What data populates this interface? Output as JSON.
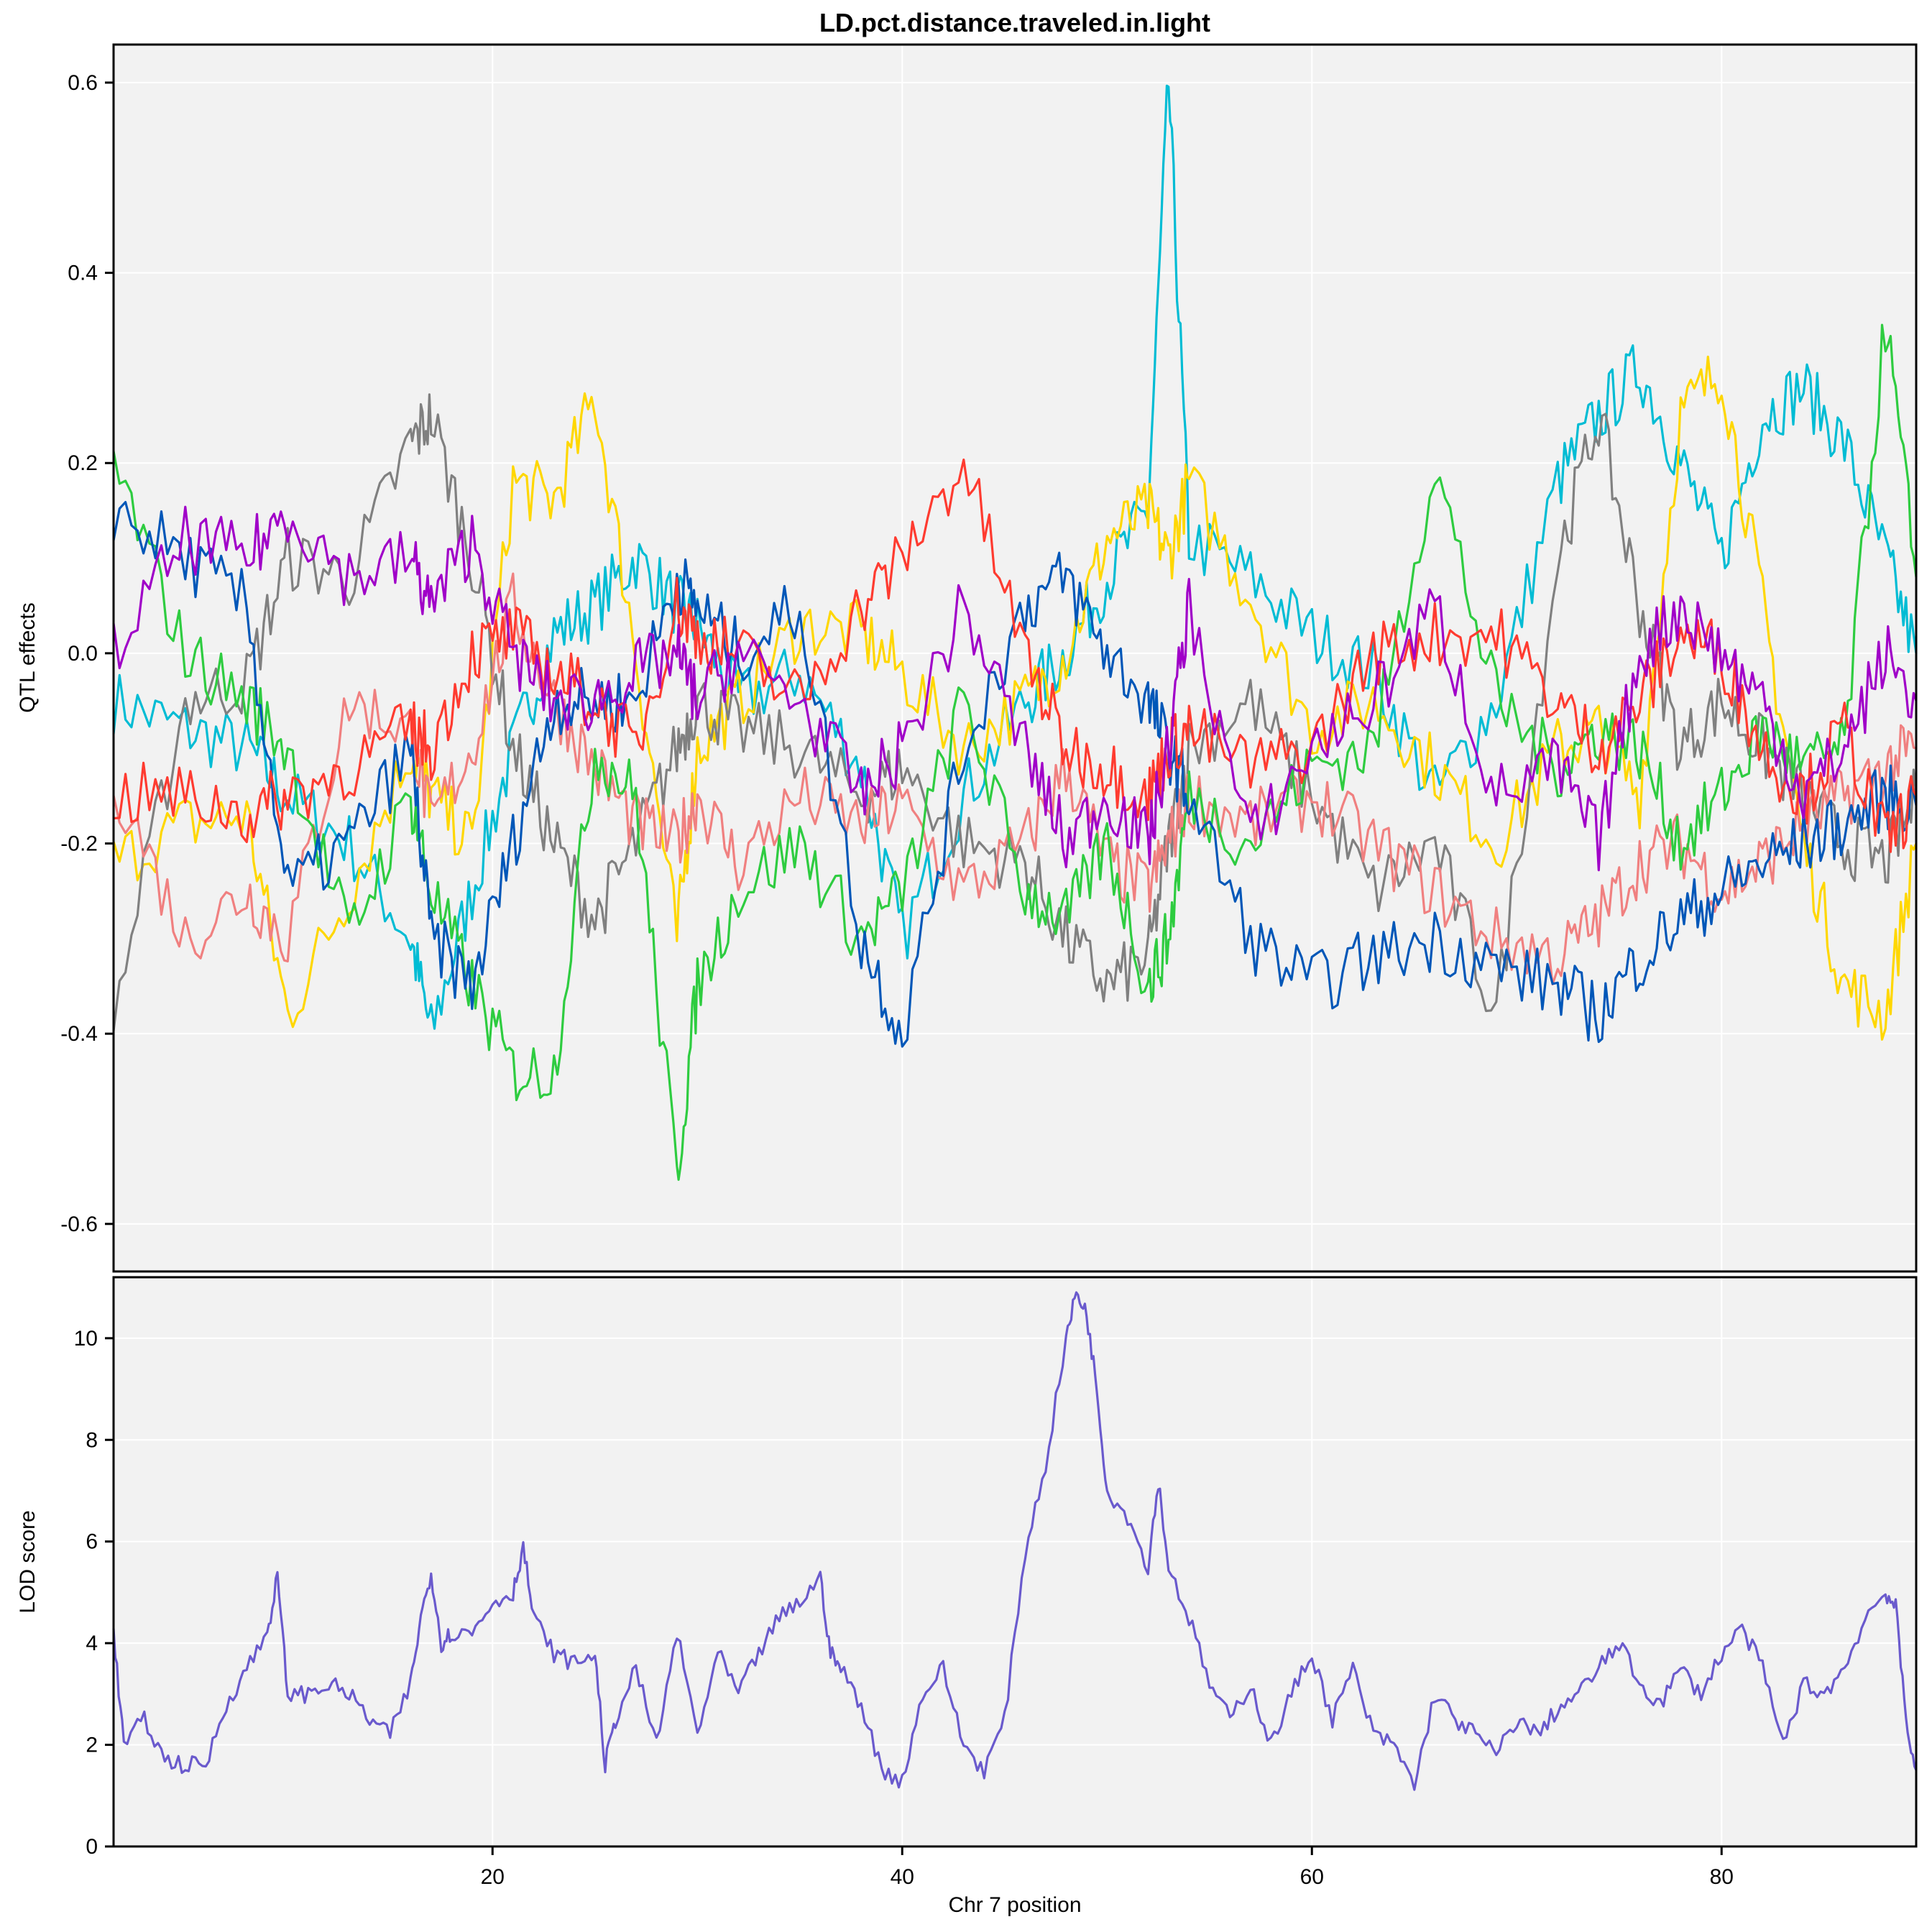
{
  "chart_data": [
    {
      "type": "line",
      "title": "LD.pct.distance.traveled.in.light",
      "ylabel": "QTL effects",
      "xlabel": "",
      "xlim": [
        1.5,
        89.5
      ],
      "ylim": [
        -0.65,
        0.64
      ],
      "grid": true,
      "x_ticks": [
        20,
        40,
        60,
        80
      ],
      "y_ticks": [
        -0.6,
        -0.4,
        -0.2,
        0.0,
        0.2,
        0.4,
        0.6
      ],
      "y_tick_labels": [
        "-0.6",
        "-0.4",
        "-0.2",
        "0.0",
        "0.2",
        "0.4",
        "0.6"
      ],
      "x": [
        1.5,
        5,
        8,
        10,
        13,
        16,
        17,
        19,
        21,
        23,
        25,
        27,
        29,
        30,
        32,
        35,
        38,
        40,
        43,
        46,
        48,
        50,
        52,
        53,
        54,
        57,
        60,
        63,
        66,
        69,
        72,
        74,
        76,
        78,
        80,
        82,
        84,
        86,
        88,
        89.5
      ],
      "series": [
        {
          "color": "#00bcd4",
          "values": [
            -0.05,
            -0.08,
            -0.1,
            -0.15,
            -0.2,
            -0.3,
            -0.4,
            -0.25,
            -0.1,
            0.02,
            0.05,
            0.1,
            0.05,
            0.03,
            -0.05,
            -0.02,
            -0.12,
            -0.3,
            -0.15,
            -0.05,
            0.0,
            0.08,
            0.15,
            0.6,
            0.12,
            0.08,
            0.02,
            -0.02,
            -0.15,
            -0.05,
            0.18,
            0.25,
            0.3,
            0.2,
            0.1,
            0.25,
            0.28,
            0.22,
            0.1,
            0.0
          ]
        },
        {
          "color": "#ffd700",
          "values": [
            -0.22,
            -0.18,
            -0.17,
            -0.38,
            -0.25,
            -0.1,
            -0.15,
            -0.2,
            0.18,
            0.16,
            0.27,
            0.0,
            -0.3,
            -0.1,
            -0.05,
            0.03,
            0.02,
            -0.02,
            -0.1,
            -0.05,
            0.0,
            0.12,
            0.15,
            0.1,
            0.18,
            0.06,
            -0.08,
            -0.05,
            -0.12,
            -0.2,
            -0.1,
            -0.08,
            -0.15,
            0.25,
            0.3,
            0.05,
            -0.2,
            -0.35,
            -0.38,
            -0.2
          ]
        },
        {
          "color": "#808080",
          "values": [
            -0.38,
            -0.05,
            -0.03,
            0.1,
            0.08,
            0.22,
            0.25,
            0.1,
            -0.1,
            -0.2,
            -0.28,
            -0.2,
            -0.1,
            -0.05,
            -0.08,
            -0.1,
            -0.15,
            -0.12,
            -0.2,
            -0.22,
            -0.3,
            -0.35,
            -0.32,
            -0.2,
            -0.1,
            -0.05,
            -0.15,
            -0.25,
            -0.2,
            -0.38,
            0.1,
            0.25,
            0.05,
            -0.1,
            -0.05,
            -0.1,
            -0.15,
            -0.2,
            -0.22,
            -0.15
          ]
        },
        {
          "color": "#f08080",
          "values": [
            -0.13,
            -0.3,
            -0.25,
            -0.3,
            -0.05,
            -0.08,
            -0.18,
            -0.1,
            0.05,
            -0.05,
            -0.12,
            -0.18,
            -0.2,
            -0.15,
            -0.22,
            -0.15,
            -0.18,
            -0.16,
            -0.25,
            -0.2,
            -0.12,
            -0.22,
            -0.25,
            -0.2,
            -0.15,
            -0.18,
            -0.15,
            -0.2,
            -0.25,
            -0.3,
            -0.32,
            -0.28,
            -0.22,
            -0.2,
            -0.25,
            -0.22,
            -0.18,
            -0.15,
            -0.12,
            -0.1
          ]
        },
        {
          "color": "#2ecc40",
          "values": [
            0.2,
            0.0,
            -0.05,
            -0.1,
            -0.3,
            -0.15,
            -0.25,
            -0.35,
            -0.44,
            -0.44,
            -0.1,
            -0.15,
            -0.55,
            -0.35,
            -0.25,
            -0.2,
            -0.3,
            -0.25,
            -0.05,
            -0.25,
            -0.28,
            -0.2,
            -0.35,
            -0.3,
            -0.15,
            -0.2,
            -0.12,
            -0.1,
            0.2,
            -0.05,
            -0.12,
            -0.08,
            -0.1,
            -0.2,
            -0.15,
            -0.08,
            -0.12,
            -0.1,
            0.35,
            0.08
          ]
        },
        {
          "color": "#0057b8",
          "values": [
            0.15,
            0.1,
            0.05,
            -0.25,
            -0.2,
            -0.1,
            -0.3,
            -0.35,
            -0.2,
            -0.05,
            -0.05,
            -0.05,
            0.08,
            0.05,
            0.0,
            0.05,
            -0.3,
            -0.4,
            -0.1,
            0.05,
            0.08,
            0.0,
            -0.05,
            -0.1,
            -0.15,
            -0.3,
            -0.35,
            -0.32,
            -0.3,
            -0.33,
            -0.35,
            -0.38,
            -0.32,
            -0.28,
            -0.25,
            -0.22,
            -0.2,
            -0.18,
            -0.15,
            -0.16
          ]
        },
        {
          "color": "#ff3b30",
          "values": [
            -0.15,
            -0.15,
            -0.17,
            -0.15,
            -0.12,
            -0.08,
            -0.1,
            0.0,
            0.02,
            -0.02,
            -0.05,
            -0.1,
            0.05,
            0.02,
            0.0,
            -0.05,
            0.05,
            0.1,
            0.2,
            0.0,
            -0.1,
            -0.12,
            -0.15,
            -0.1,
            -0.08,
            -0.12,
            -0.1,
            0.0,
            0.02,
            0.02,
            -0.05,
            -0.1,
            -0.05,
            0.02,
            0.0,
            -0.1,
            -0.15,
            -0.08,
            -0.2,
            -0.15
          ]
        },
        {
          "color": "#a000c8",
          "values": [
            0.0,
            0.12,
            0.1,
            0.15,
            0.08,
            0.1,
            0.05,
            0.12,
            0.0,
            -0.05,
            -0.05,
            -0.02,
            0.0,
            -0.05,
            0.0,
            -0.05,
            -0.15,
            -0.1,
            0.05,
            -0.1,
            -0.2,
            -0.15,
            -0.2,
            -0.1,
            0.05,
            -0.2,
            -0.1,
            -0.05,
            0.05,
            -0.15,
            -0.12,
            -0.2,
            0.0,
            0.05,
            0.0,
            -0.05,
            -0.15,
            -0.1,
            0.0,
            -0.05
          ]
        }
      ]
    },
    {
      "type": "line",
      "title": "",
      "ylabel": "LOD score",
      "xlabel": "Chr 7 position",
      "xlim": [
        1.5,
        89.5
      ],
      "ylim": [
        0,
        11.2
      ],
      "grid": true,
      "x_ticks": [
        20,
        40,
        60,
        80
      ],
      "x_tick_labels": [
        "20",
        "40",
        "60",
        "80"
      ],
      "y_ticks": [
        0,
        2,
        4,
        6,
        8,
        10
      ],
      "y_tick_labels": [
        "0",
        "2",
        "4",
        "6",
        "8",
        "10"
      ],
      "series": [
        {
          "color": "#6a5acd",
          "x": [
            1.5,
            2,
            3,
            4,
            5,
            6,
            7,
            8,
            9,
            9.5,
            10,
            11,
            12,
            13,
            14,
            15,
            16,
            16.5,
            17,
            17.5,
            18,
            19,
            20,
            21,
            21.5,
            22,
            23,
            24,
            25,
            25.5,
            26,
            27,
            28,
            29,
            30,
            31,
            32,
            33,
            34,
            35,
            36,
            36.5,
            37,
            38,
            39,
            40,
            41,
            42,
            43,
            44,
            45,
            46,
            47,
            48,
            48.5,
            49,
            49.5,
            50,
            51,
            52,
            52.5,
            53,
            54,
            55,
            56,
            57,
            58,
            59,
            60,
            61,
            62,
            63,
            64,
            65,
            66,
            67,
            68,
            69,
            70,
            71,
            72,
            73,
            74,
            75,
            76,
            77,
            78,
            79,
            80,
            81,
            82,
            83,
            84,
            85,
            86,
            87,
            88,
            88.5,
            89,
            89.5
          ],
          "values": [
            4.2,
            2.0,
            2.5,
            1.7,
            1.6,
            1.6,
            2.8,
            3.5,
            4.2,
            5.3,
            3.0,
            3.0,
            3.2,
            3.0,
            2.5,
            2.2,
            3.2,
            4.5,
            5.4,
            4.0,
            4.2,
            4.2,
            4.8,
            5.0,
            5.9,
            4.5,
            3.8,
            3.6,
            3.8,
            1.6,
            2.5,
            3.5,
            2.0,
            4.2,
            2.2,
            3.8,
            3.0,
            3.8,
            4.5,
            4.8,
            5.3,
            3.8,
            3.5,
            2.8,
            1.5,
            1.3,
            3.0,
            3.5,
            2.0,
            1.5,
            2.5,
            5.8,
            7.5,
            10.0,
            10.9,
            10.5,
            9.0,
            7.0,
            6.5,
            5.5,
            7.2,
            5.5,
            4.5,
            3.2,
            2.5,
            3.2,
            2.0,
            3.0,
            3.8,
            2.5,
            3.5,
            2.2,
            2.0,
            1.2,
            3.0,
            2.5,
            2.2,
            1.8,
            2.5,
            2.2,
            2.7,
            3.0,
            3.5,
            4.0,
            3.2,
            2.8,
            3.5,
            3.0,
            3.8,
            4.3,
            3.5,
            2.0,
            3.2,
            3.0,
            3.5,
            4.5,
            5.0,
            4.7,
            2.5,
            1.5
          ]
        }
      ]
    }
  ]
}
